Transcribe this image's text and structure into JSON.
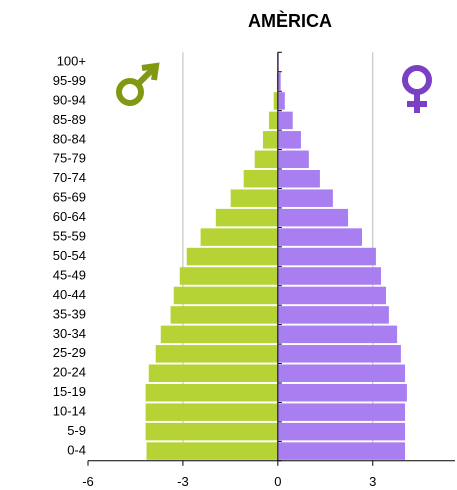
{
  "chart_data": {
    "type": "pyramid",
    "title": "AMÈRICA",
    "categories": [
      "0-4",
      "5-9",
      "10-14",
      "15-19",
      "20-24",
      "25-29",
      "30-34",
      "35-39",
      "40-44",
      "45-49",
      "50-54",
      "55-59",
      "60-64",
      "65-69",
      "70-74",
      "75-79",
      "80-84",
      "85-89",
      "90-94",
      "95-99",
      "100+"
    ],
    "series": [
      {
        "color": "#b5d334",
        "values": [
          -4.15,
          -4.18,
          -4.18,
          -4.18,
          -4.08,
          -3.86,
          -3.7,
          -3.39,
          -3.29,
          -3.1,
          -2.88,
          -2.44,
          -1.96,
          -1.49,
          -1.08,
          -0.73,
          -0.47,
          -0.28,
          -0.13,
          -0.03,
          -0.01
        ]
      },
      {
        "color": "#a97ef0",
        "values": [
          4.02,
          4.02,
          4.02,
          4.08,
          4.02,
          3.89,
          3.77,
          3.51,
          3.42,
          3.26,
          3.1,
          2.66,
          2.22,
          1.74,
          1.33,
          0.98,
          0.73,
          0.47,
          0.22,
          0.09,
          0.03
        ]
      }
    ],
    "xlim": [
      -6,
      5.6
    ],
    "xticks": [
      -6,
      -3,
      0,
      3
    ],
    "grid": true
  }
}
